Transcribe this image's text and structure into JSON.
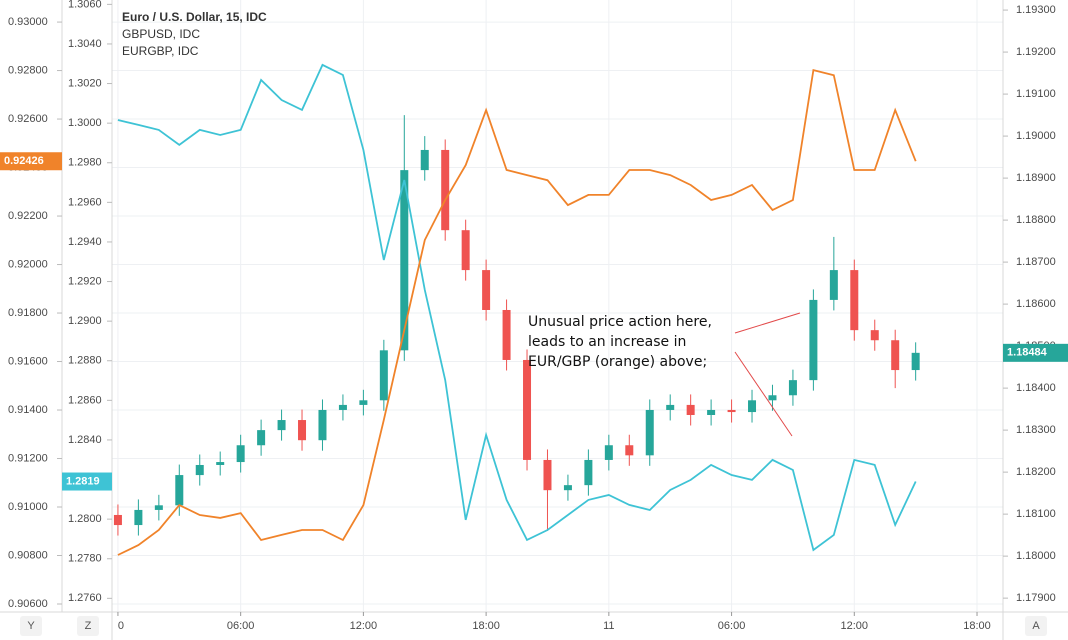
{
  "chart_data": {
    "type": "candlestick",
    "x": [
      0,
      1,
      2,
      3,
      4,
      5,
      6,
      7,
      8,
      9,
      10,
      11,
      12,
      13,
      14,
      15,
      16,
      17,
      18,
      19,
      20,
      21,
      22,
      23,
      24,
      25,
      26,
      27,
      28,
      29,
      30,
      31,
      32,
      33,
      34,
      35,
      36,
      37,
      38,
      39
    ],
    "xlim": [
      -0.29,
      43.27
    ],
    "xticks": [
      0,
      {
        "value": 6,
        "label": "06:00"
      },
      {
        "value": 12,
        "label": "12:00"
      },
      {
        "value": 18,
        "label": "18:00"
      },
      {
        "value": 24,
        "label": "11"
      },
      {
        "value": 30,
        "label": "06:00"
      },
      {
        "value": 36,
        "label": "12:00"
      },
      {
        "value": 42,
        "label": "18:00"
      }
    ],
    "ylim": [
      1.17867,
      1.19324
    ],
    "yticks": [
      {
        "value": 1.193,
        "label": "1.19300"
      },
      {
        "value": 1.192,
        "label": "1.19200"
      },
      {
        "value": 1.191,
        "label": "1.19100"
      },
      {
        "value": 1.19,
        "label": "1.19000"
      },
      {
        "value": 1.189,
        "label": "1.18900"
      },
      {
        "value": 1.188,
        "label": "1.18800"
      },
      {
        "value": 1.187,
        "label": "1.18700"
      },
      {
        "value": 1.186,
        "label": "1.18600"
      },
      {
        "value": 1.185,
        "label": "1.18500"
      },
      {
        "value": 1.184,
        "label": "1.18400"
      },
      {
        "value": 1.183,
        "label": "1.18300"
      },
      {
        "value": 1.182,
        "label": "1.18200"
      },
      {
        "value": 1.181,
        "label": "1.18100"
      },
      {
        "value": 1.18,
        "label": "1.18000"
      },
      {
        "value": 1.179,
        "label": "1.17900"
      }
    ],
    "y2lim": [
      1.27531,
      1.30622
    ],
    "y2ticks": [
      {
        "value": 1.306,
        "label": "1.3060"
      },
      {
        "value": 1.304,
        "label": "1.3040"
      },
      {
        "value": 1.302,
        "label": "1.3020"
      },
      {
        "value": 1.3,
        "label": "1.3000"
      },
      {
        "value": 1.298,
        "label": "1.2980"
      },
      {
        "value": 1.296,
        "label": "1.2960"
      },
      {
        "value": 1.294,
        "label": "1.2940"
      },
      {
        "value": 1.292,
        "label": "1.2920"
      },
      {
        "value": 1.29,
        "label": "1.2900"
      },
      {
        "value": 1.288,
        "label": "1.2880"
      },
      {
        "value": 1.286,
        "label": "1.2860"
      },
      {
        "value": 1.284,
        "label": "1.2840"
      },
      {
        "value": 1.282,
        "label": "1.2820"
      },
      {
        "value": 1.28,
        "label": "1.2800"
      },
      {
        "value": 1.278,
        "label": "1.2780"
      },
      {
        "value": 1.276,
        "label": "1.2760"
      }
    ],
    "y3lim": [
      0.90567,
      0.93091
    ],
    "y3ticks": [
      {
        "value": 0.93,
        "label": "0.93000"
      },
      {
        "value": 0.928,
        "label": "0.92800"
      },
      {
        "value": 0.926,
        "label": "0.92600"
      },
      {
        "value": 0.924,
        "label": "0.92400"
      },
      {
        "value": 0.922,
        "label": "0.92200"
      },
      {
        "value": 0.92,
        "label": "0.92000"
      },
      {
        "value": 0.918,
        "label": "0.91800"
      },
      {
        "value": 0.916,
        "label": "0.91600"
      },
      {
        "value": 0.914,
        "label": "0.91400"
      },
      {
        "value": 0.912,
        "label": "0.91200"
      },
      {
        "value": 0.91,
        "label": "0.91000"
      },
      {
        "value": 0.908,
        "label": "0.90800"
      },
      {
        "value": 0.906,
        "label": "0.90600"
      }
    ],
    "grid": true,
    "series": [
      {
        "name": "Euro / U.S. Dollar, 15, IDC",
        "type": "candlestick",
        "axis": "y",
        "up_color": "#26a69a",
        "down_color": "#ef5350",
        "color": "#26a69a",
        "price_label": "1.18484",
        "open": [
          1.18098,
          1.18074,
          1.1811,
          1.18121,
          1.18193,
          1.18217,
          1.18224,
          1.18264,
          1.183,
          1.18324,
          1.18276,
          1.18348,
          1.1836,
          1.18371,
          1.1849,
          1.18919,
          1.18967,
          1.18776,
          1.18681,
          1.18586,
          1.18467,
          1.18229,
          1.18157,
          1.18169,
          1.18229,
          1.18264,
          1.1824,
          1.18348,
          1.1836,
          1.18336,
          1.18348,
          1.18343,
          1.18371,
          1.18383,
          1.18419,
          1.1861,
          1.18681,
          1.18538,
          1.18514,
          1.18443
        ],
        "high": [
          1.18123,
          1.18135,
          1.18146,
          1.18218,
          1.18242,
          1.18249,
          1.18289,
          1.18325,
          1.18349,
          1.18349,
          1.18373,
          1.18385,
          1.18396,
          1.18515,
          1.1905,
          1.19,
          1.18992,
          1.18801,
          1.18706,
          1.18611,
          1.18492,
          1.18254,
          1.18194,
          1.18254,
          1.18289,
          1.18289,
          1.18373,
          1.18385,
          1.18385,
          1.18373,
          1.18373,
          1.18396,
          1.18408,
          1.18444,
          1.18635,
          1.1876,
          1.18706,
          1.18563,
          1.18539,
          1.18509
        ],
        "low": [
          1.18049,
          1.18049,
          1.18085,
          1.18096,
          1.18168,
          1.18192,
          1.18199,
          1.18239,
          1.18275,
          1.18251,
          1.18251,
          1.18323,
          1.18335,
          1.18346,
          1.18465,
          1.18894,
          1.18751,
          1.18656,
          1.18561,
          1.18442,
          1.18204,
          1.1806,
          1.18132,
          1.18144,
          1.18204,
          1.18215,
          1.18215,
          1.18323,
          1.18311,
          1.18311,
          1.18318,
          1.18318,
          1.18346,
          1.18358,
          1.18394,
          1.18585,
          1.18513,
          1.18489,
          1.184,
          1.18418
        ],
        "close": [
          1.18074,
          1.1811,
          1.18121,
          1.18193,
          1.18217,
          1.18224,
          1.18264,
          1.183,
          1.18324,
          1.18276,
          1.18348,
          1.1836,
          1.18371,
          1.1849,
          1.18919,
          1.18967,
          1.18776,
          1.18681,
          1.18586,
          1.18467,
          1.18229,
          1.18157,
          1.18169,
          1.18229,
          1.18264,
          1.1824,
          1.18348,
          1.1836,
          1.18336,
          1.18348,
          1.18343,
          1.18371,
          1.18383,
          1.18419,
          1.1861,
          1.18681,
          1.18538,
          1.18514,
          1.18443,
          1.18484
        ]
      },
      {
        "name": "GBPUSD, IDC",
        "type": "line",
        "axis": "y2",
        "color": "#3ec3d5",
        "price_label": "1.2819",
        "values": [
          1.30016,
          1.29991,
          1.29966,
          1.2989,
          1.29966,
          1.2994,
          1.29966,
          1.30218,
          1.30117,
          1.30067,
          1.30294,
          1.30243,
          1.29865,
          1.29309,
          1.29713,
          1.29158,
          1.28703,
          1.27996,
          1.28425,
          1.28097,
          1.27895,
          1.27945,
          1.28021,
          1.28097,
          1.28122,
          1.28072,
          1.28046,
          1.28147,
          1.28198,
          1.28274,
          1.28223,
          1.28198,
          1.28299,
          1.28248,
          1.27844,
          1.2792,
          1.28299,
          1.28274,
          1.27971,
          1.2819
        ]
      },
      {
        "name": "EURGBP, IDC",
        "type": "line",
        "axis": "y3",
        "color": "#f0832a",
        "price_label": "0.92426",
        "values": [
          0.90802,
          0.90843,
          0.90905,
          0.91008,
          0.90967,
          0.90955,
          0.90975,
          0.90864,
          0.90885,
          0.90905,
          0.90905,
          0.90864,
          0.91008,
          0.91359,
          0.9173,
          0.92101,
          0.92266,
          0.9241,
          0.92637,
          0.9239,
          0.92369,
          0.92348,
          0.92245,
          0.92287,
          0.92287,
          0.9239,
          0.9239,
          0.92369,
          0.92328,
          0.92266,
          0.92287,
          0.92328,
          0.92225,
          0.92266,
          0.92802,
          0.92781,
          0.9239,
          0.9239,
          0.92637,
          0.92426
        ]
      }
    ],
    "annotation": [
      "Unusual price action here,",
      "leads to an increase in",
      "EUR/GBP (orange) above;"
    ]
  },
  "toolbar": {
    "left": [
      "Y",
      "Z"
    ],
    "right": "A"
  }
}
